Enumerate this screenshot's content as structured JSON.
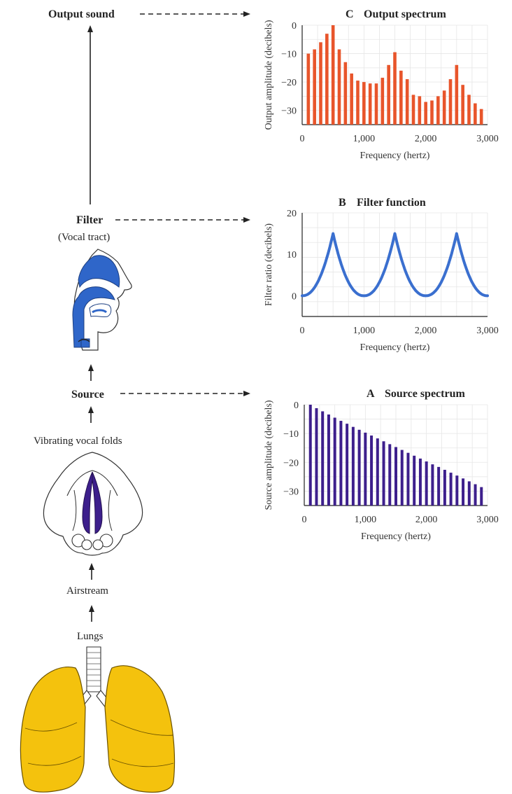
{
  "labels": {
    "output_sound": "Output sound",
    "filter": "Filter",
    "vocal_tract": "(Vocal tract)",
    "source": "Source",
    "vibrating_vocal_folds": "Vibrating vocal folds",
    "airstream": "Airstream",
    "lungs": "Lungs"
  },
  "colors": {
    "output_bars": "#e8552b",
    "filter_curve": "#3a6fcf",
    "source_bars": "#3d1f8c",
    "vocal_tract": "#2f66c9",
    "vocal_folds": "#3d1f8c",
    "lungs": "#f4c20d"
  },
  "icons": {
    "vocal_tract": "vocal-tract-illustration",
    "vocal_folds": "vocal-folds-illustration",
    "lungs": "lungs-illustration"
  },
  "chart_data": [
    {
      "id": "output",
      "panel": "C",
      "type": "bar",
      "title": "Output spectrum",
      "xlabel": "Frequency (hertz)",
      "ylabel": "Output amplitude (decibels)",
      "xlim": [
        0,
        3000
      ],
      "ylim": [
        -35,
        0
      ],
      "xticks": [
        0,
        1000,
        2000,
        3000
      ],
      "xtick_labels": [
        "0",
        "1,000",
        "2,000",
        "3,000"
      ],
      "yticks": [
        0,
        -10,
        -20,
        -30
      ],
      "ytick_labels": [
        "0",
        "−10",
        "−20",
        "−30"
      ],
      "grid": true,
      "x": [
        100,
        200,
        300,
        400,
        500,
        600,
        700,
        800,
        900,
        1000,
        1100,
        1200,
        1300,
        1400,
        1500,
        1600,
        1700,
        1800,
        1900,
        2000,
        2100,
        2200,
        2300,
        2400,
        2500,
        2600,
        2700,
        2800,
        2900
      ],
      "values": [
        -10,
        -8.5,
        -6,
        -3,
        0,
        -8.5,
        -13,
        -17,
        -19.5,
        -20,
        -20.5,
        -20.5,
        -18.5,
        -14,
        -9.5,
        -16,
        -19,
        -24.5,
        -25,
        -27,
        -26.5,
        -25,
        -23,
        -19,
        -14,
        -21,
        -24.5,
        -27.5,
        -29.5
      ]
    },
    {
      "id": "filter",
      "panel": "B",
      "type": "line",
      "title": "Filter function",
      "xlabel": "Frequency (hertz)",
      "ylabel": "Filter ratio (decibels)",
      "xlim": [
        0,
        3000
      ],
      "ylim": [
        -5,
        20
      ],
      "xticks": [
        0,
        1000,
        2000,
        3000
      ],
      "xtick_labels": [
        "0",
        "1,000",
        "2,000",
        "3,000"
      ],
      "yticks": [
        0,
        10,
        20
      ],
      "ytick_labels": [
        "0",
        "10",
        "20"
      ],
      "grid": true,
      "peaks": [
        500,
        1500,
        2500
      ],
      "peak_value": 15,
      "trough_value": 0
    },
    {
      "id": "source",
      "panel": "A",
      "type": "bar",
      "title": "Source spectrum",
      "xlabel": "Frequency (hertz)",
      "ylabel": "Source amplitude (decibels)",
      "xlim": [
        0,
        3000
      ],
      "ylim": [
        -35,
        0
      ],
      "xticks": [
        0,
        1000,
        2000,
        3000
      ],
      "xtick_labels": [
        "0",
        "1,000",
        "2,000",
        "3,000"
      ],
      "yticks": [
        0,
        -10,
        -20,
        -30
      ],
      "ytick_labels": [
        "0",
        "−10",
        "−20",
        "−30"
      ],
      "grid": true,
      "x": [
        100,
        200,
        300,
        400,
        500,
        600,
        700,
        800,
        900,
        1000,
        1100,
        1200,
        1300,
        1400,
        1500,
        1600,
        1700,
        1800,
        1900,
        2000,
        2100,
        2200,
        2300,
        2400,
        2500,
        2600,
        2700,
        2800,
        2900
      ],
      "values": [
        0,
        -1.2,
        -2.3,
        -3.4,
        -4.5,
        -5.6,
        -6.6,
        -7.7,
        -8.7,
        -9.7,
        -10.7,
        -11.7,
        -12.7,
        -13.7,
        -14.7,
        -15.7,
        -16.7,
        -17.7,
        -18.7,
        -19.7,
        -20.7,
        -21.6,
        -22.6,
        -23.6,
        -24.6,
        -25.6,
        -26.6,
        -27.6,
        -28.6
      ]
    }
  ]
}
